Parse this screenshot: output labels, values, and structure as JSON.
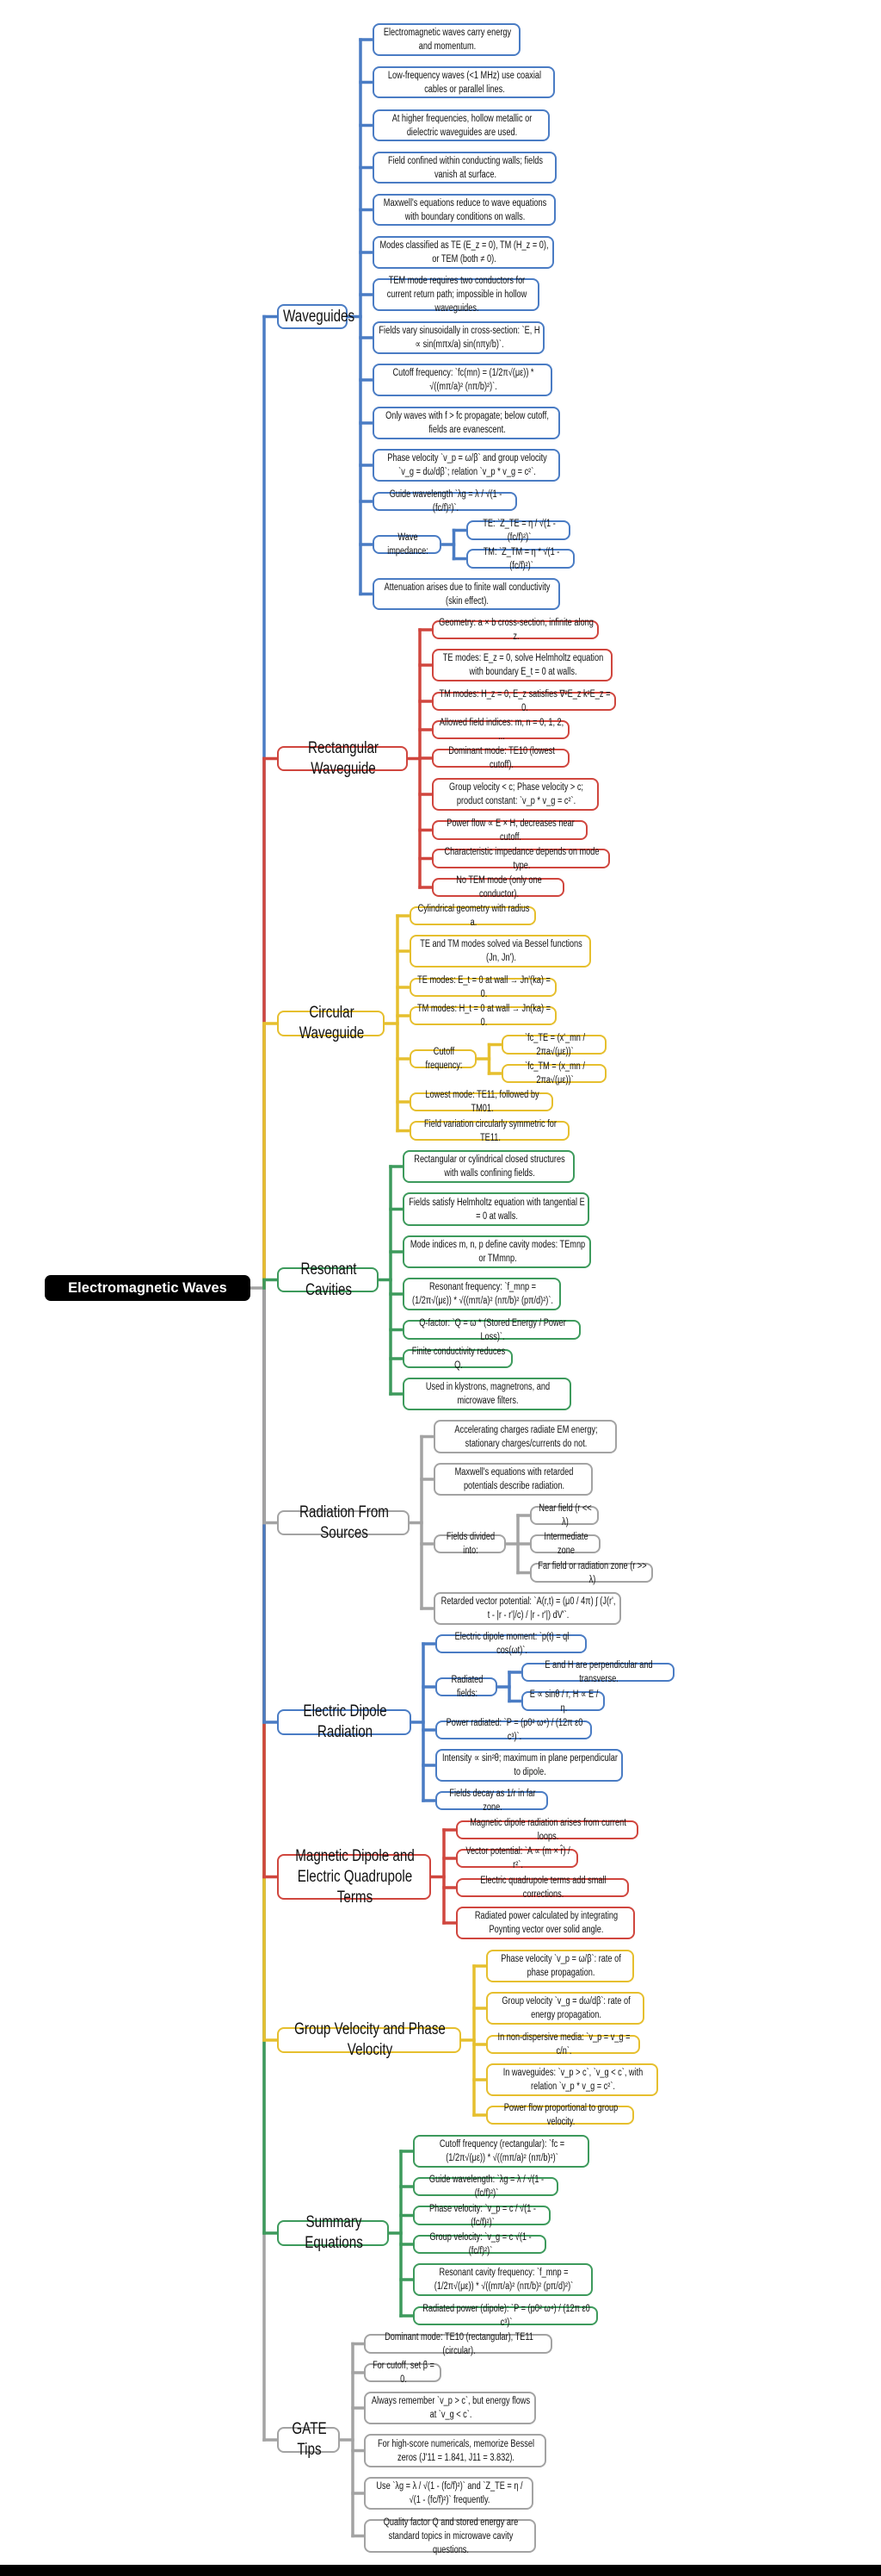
{
  "root": {
    "label": "Electromagnetic Waves",
    "line_color": "#a3a3a3"
  },
  "branches": [
    {
      "label": "Waveguides",
      "color": "#4a7cc4",
      "items": [
        {
          "text": "Electromagnetic waves carry energy and momentum."
        },
        {
          "text": "Low-frequency waves (<1 MHz) use coaxial cables or parallel lines."
        },
        {
          "text": "At higher frequencies, hollow metallic or dielectric waveguides are used."
        },
        {
          "text": "Field confined within conducting walls; fields vanish at surface."
        },
        {
          "text": "Maxwell's equations reduce to wave equations with boundary conditions on walls."
        },
        {
          "text": "Modes classified as TE (E_z = 0), TM (H_z = 0), or TEM (both ≠ 0)."
        },
        {
          "text": "TEM mode requires two conductors for current return path; impossible in hollow waveguides."
        },
        {
          "text": "Fields vary sinusoidally in cross-section: `E, H ∝ sin(mπx/a) sin(nπy/b)`."
        },
        {
          "text": "Cutoff frequency: `fc(mn) = (1/2π√(με)) * √((mπ/a)² (nπ/b)²)`."
        },
        {
          "text": "Only waves with f > fc propagate; below cutoff, fields are evanescent."
        },
        {
          "text": "Phase velocity `v_p = ω/β` and group velocity `v_g = dω/dβ`; relation `v_p * v_g = c²`."
        },
        {
          "text": "Guide wavelength `λg = λ / √(1 - (fc/f)²)`."
        },
        {
          "text": "Wave impedance:",
          "children": [
            {
              "text": "TE: `Z_TE = η / √(1 - (fc/f)²)`"
            },
            {
              "text": "TM: `Z_TM = η * √(1 - (fc/f)²)`"
            }
          ]
        },
        {
          "text": "Attenuation arises due to finite wall conductivity (skin effect)."
        }
      ]
    },
    {
      "label": "Rectangular Waveguide",
      "color": "#d0463e",
      "items": [
        {
          "text": "Geometry: a × b cross-section, infinite along z."
        },
        {
          "text": "TE modes: E_z = 0, solve Helmholtz equation with boundary E_t = 0 at walls."
        },
        {
          "text": "TM modes: H_z = 0, E_z satisfies ∇²E_z k²E_z = 0."
        },
        {
          "text": "Allowed field indices: m, n = 0, 1, 2, ..."
        },
        {
          "text": "Dominant mode: TE10 (lowest cutoff)."
        },
        {
          "text": "Group velocity < c; Phase velocity > c; product constant: `v_p * v_g = c²`."
        },
        {
          "text": "Power flow ∝ E × H, decreases near cutoff."
        },
        {
          "text": "Characteristic impedance depends on mode type."
        },
        {
          "text": "No TEM mode (only one conductor)."
        }
      ]
    },
    {
      "label": "Circular Waveguide",
      "color": "#e6bf2e",
      "items": [
        {
          "text": "Cylindrical geometry with radius a."
        },
        {
          "text": "TE and TM modes solved via Bessel functions (Jn, Jn')."
        },
        {
          "text": "TE modes: E_t = 0 at wall → Jn'(ka) = 0."
        },
        {
          "text": "TM modes: H_t = 0 at wall → Jn(ka) = 0."
        },
        {
          "text": "Cutoff frequency:",
          "children": [
            {
              "text": "`fc_TE = (x'_mn / 2πa√(με))`"
            },
            {
              "text": "`fc_TM = (x_mn / 2πa√(με))`"
            }
          ]
        },
        {
          "text": "Lowest mode: TE11, followed by TM01."
        },
        {
          "text": "Field variation circularly symmetric for TE11."
        }
      ]
    },
    {
      "label": "Resonant Cavities",
      "color": "#3d9a5c",
      "items": [
        {
          "text": "Rectangular or cylindrical closed structures with walls confining fields."
        },
        {
          "text": "Fields satisfy Helmholtz equation with tangential E = 0 at walls."
        },
        {
          "text": "Mode indices m, n, p define cavity modes: TEmnp or TMmnp."
        },
        {
          "text": "Resonant frequency: `f_mnp = (1/2π√(με)) * √((mπ/a)² (nπ/b)² (pπ/d)²)`."
        },
        {
          "text": "Q-factor: `Q = ω * (Stored Energy / Power Loss)`."
        },
        {
          "text": "Finite conductivity reduces Q."
        },
        {
          "text": "Used in klystrons, magnetrons, and microwave filters."
        }
      ]
    },
    {
      "label": "Radiation From Sources",
      "color": "#a3a3a3",
      "items": [
        {
          "text": "Accelerating charges radiate EM energy; stationary charges/currents do not."
        },
        {
          "text": "Maxwell's equations with retarded potentials describe radiation."
        },
        {
          "text": "Fields divided into:",
          "children": [
            {
              "text": "Near field (r << λ)"
            },
            {
              "text": "Intermediate zone"
            },
            {
              "text": "Far field or radiation zone (r >> λ)"
            }
          ]
        },
        {
          "text": "Retarded vector potential: `A(r,t) = (μ0 / 4π) ∫ (J(r', t - |r - r'|/c) / |r - r'|) dV'`."
        }
      ]
    },
    {
      "label": "Electric Dipole Radiation",
      "color": "#4a7cc4",
      "items": [
        {
          "text": "Electric dipole moment: `p(t) = ql cos(ωt)`."
        },
        {
          "text": "Radiated fields:",
          "children": [
            {
              "text": "E and H are perpendicular and transverse."
            },
            {
              "text": "E ∝ sinθ / r, H ∝ E / η."
            }
          ]
        },
        {
          "text": "Power radiated: `P = (p0² ω⁴) / (12π ε0 c³)`."
        },
        {
          "text": "Intensity ∝ sin²θ; maximum in plane perpendicular to dipole."
        },
        {
          "text": "Fields decay as 1/r in far zone."
        }
      ]
    },
    {
      "label": "Magnetic Dipole and Electric Quadrupole Terms",
      "color": "#d0463e",
      "items": [
        {
          "text": "Magnetic dipole radiation arises from current loops."
        },
        {
          "text": "Vector potential: `A ∝ (m × r̂) / r²`."
        },
        {
          "text": "Electric quadrupole terms add small corrections."
        },
        {
          "text": "Radiated power calculated by integrating Poynting vector over solid angle."
        }
      ]
    },
    {
      "label": "Group Velocity and Phase Velocity",
      "color": "#e6bf2e",
      "items": [
        {
          "text": "Phase velocity `v_p = ω/β`: rate of phase propagation."
        },
        {
          "text": "Group velocity `v_g = dω/dβ`: rate of energy propagation."
        },
        {
          "text": "In non-dispersive media: `v_p = v_g = c/n`."
        },
        {
          "text": "In waveguides: `v_p > c`, `v_g < c`, with relation `v_p * v_g = c²`."
        },
        {
          "text": "Power flow proportional to group velocity."
        }
      ]
    },
    {
      "label": "Summary Equations",
      "color": "#3d9a5c",
      "items": [
        {
          "text": "Cutoff frequency (rectangular): `fc = (1/2π√(με)) * √((mπ/a)² (nπ/b)²)`"
        },
        {
          "text": "Guide wavelength: `λg = λ / √(1 - (fc/f)²)`"
        },
        {
          "text": "Phase velocity: `v_p = c / √(1 - (fc/f)²)`"
        },
        {
          "text": "Group velocity: `v_g = c √(1 - (fc/f)²)`"
        },
        {
          "text": "Resonant cavity frequency: `f_mnp = (1/2π√(με)) * √((mπ/a)² (nπ/b)² (pπ/d)²)`"
        },
        {
          "text": "Radiated power (dipole): `P = (p0² ω⁴) / (12π ε0 c³)`"
        }
      ]
    },
    {
      "label": "GATE Tips",
      "color": "#a3a3a3",
      "items": [
        {
          "text": "Dominant mode: TE10 (rectangular), TE11 (circular)."
        },
        {
          "text": "For cutoff, set β = 0."
        },
        {
          "text": "Always remember `v_p > c`, but energy flows at `v_g < c`."
        },
        {
          "text": "For high-score numericals, memorize Bessel zeros (J'11 = 1.841, J11 = 3.832)."
        },
        {
          "text": "Use `λg = λ / √(1 - (fc/f)²)` and `Z_TE = η / √(1 - (fc/f)²)` frequently."
        },
        {
          "text": "Quality factor Q and stored energy are standard topics in microwave cavity questions."
        }
      ]
    }
  ]
}
